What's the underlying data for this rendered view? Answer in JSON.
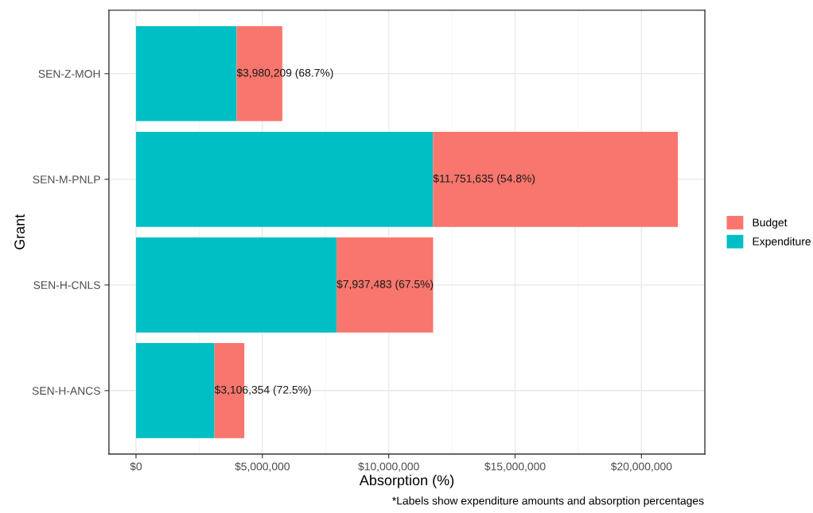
{
  "chart_data": {
    "type": "bar",
    "orientation": "horizontal",
    "stacked": true,
    "xlabel": "Absorption (%)",
    "ylabel": "Grant",
    "categories": [
      "SEN-Z-MOH",
      "SEN-M-PNLP",
      "SEN-H-CNLS",
      "SEN-H-ANCS"
    ],
    "series": [
      {
        "name": "Expenditure",
        "color": "#00bfc4",
        "values": [
          3980209,
          11751635,
          7937483,
          3106354
        ],
        "value_labels": [
          "$3,980,209 (68.7%)",
          "$11,751,635 (54.8%)",
          "$7,937,483 (67.5%)",
          "$3,106,354 (72.5%)"
        ]
      },
      {
        "name": "Budget",
        "color": "#f8766d",
        "values": [
          1810000,
          9690000,
          3820000,
          1180000
        ]
      }
    ],
    "xlim": [
      -1070000,
      22510000
    ],
    "xticks": [
      {
        "value": 0,
        "label": "$0"
      },
      {
        "value": 5000000,
        "label": "$5,000,000"
      },
      {
        "value": 10000000,
        "label": "$10,000,000"
      },
      {
        "value": 15000000,
        "label": "$15,000,000"
      },
      {
        "value": 20000000,
        "label": "$20,000,000"
      }
    ],
    "grid": true,
    "legend": "right",
    "annotations": [
      "*Labels show expenditure amounts and absorption percentages"
    ]
  }
}
